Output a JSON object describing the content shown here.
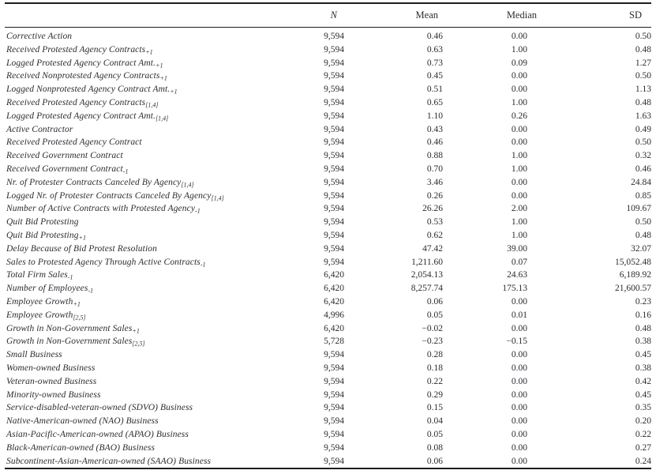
{
  "table": {
    "columns": [
      "N",
      "Mean",
      "Median",
      "SD"
    ],
    "rows": [
      {
        "label": "Corrective Action",
        "sub": "",
        "n": "9,594",
        "mean": "0.46",
        "median": "0.00",
        "sd": "0.50"
      },
      {
        "label": "Received Protested Agency Contracts",
        "sub": "+1",
        "n": "9,594",
        "mean": "0.63",
        "median": "1.00",
        "sd": "0.48"
      },
      {
        "label": "Logged Protested Agency Contract Amt.",
        "sub": "+1",
        "n": "9,594",
        "mean": "0.73",
        "median": "0.09",
        "sd": "1.27"
      },
      {
        "label": "Received Nonprotested Agency Contracts",
        "sub": "+1",
        "n": "9,594",
        "mean": "0.45",
        "median": "0.00",
        "sd": "0.50"
      },
      {
        "label": "Logged Nonprotested Agency Contract Amt.",
        "sub": "+1",
        "n": "9,594",
        "mean": "0.51",
        "median": "0.00",
        "sd": "1.13"
      },
      {
        "label": "Received Protested Agency Contracts",
        "sub": "[1,4]",
        "n": "9,594",
        "mean": "0.65",
        "median": "1.00",
        "sd": "0.48"
      },
      {
        "label": "Logged Protested Agency Contract Amt.",
        "sub": "[1,4]",
        "n": "9,594",
        "mean": "1.10",
        "median": "0.26",
        "sd": "1.63"
      },
      {
        "label": "Active Contractor",
        "sub": "",
        "n": "9,594",
        "mean": "0.43",
        "median": "0.00",
        "sd": "0.49"
      },
      {
        "label": "Received Protested Agency Contract",
        "sub": "",
        "n": "9,594",
        "mean": "0.46",
        "median": "0.00",
        "sd": "0.50"
      },
      {
        "label": "Received Government Contract",
        "sub": "",
        "n": "9,594",
        "mean": "0.88",
        "median": "1.00",
        "sd": "0.32"
      },
      {
        "label": "Received Government Contract",
        "sub": "-1",
        "n": "9,594",
        "mean": "0.70",
        "median": "1.00",
        "sd": "0.46"
      },
      {
        "label": "Nr. of Protester Contracts Canceled By Agency",
        "sub": "[1,4]",
        "n": "9,594",
        "mean": "3.46",
        "median": "0.00",
        "sd": "24.84"
      },
      {
        "label": "Logged Nr. of Protester Contracts Canceled By Agency",
        "sub": "[1,4]",
        "n": "9,594",
        "mean": "0.26",
        "median": "0.00",
        "sd": "0.85"
      },
      {
        "label": "Number of Active Contracts with Protested Agency",
        "sub": "-1",
        "n": "9,594",
        "mean": "26.26",
        "median": "2.00",
        "sd": "109.67"
      },
      {
        "label": "Quit Bid Protesting",
        "sub": "",
        "n": "9,594",
        "mean": "0.53",
        "median": "1.00",
        "sd": "0.50"
      },
      {
        "label": "Quit Bid Protesting",
        "sub": "+1",
        "n": "9,594",
        "mean": "0.62",
        "median": "1.00",
        "sd": "0.48"
      },
      {
        "label": "Delay Because of Bid Protest Resolution",
        "sub": "",
        "n": "9,594",
        "mean": "47.42",
        "median": "39.00",
        "sd": "32.07"
      },
      {
        "label": "Sales to Protested Agency Through Active Contracts",
        "sub": "-1",
        "n": "9,594",
        "mean": "1,211.60",
        "median": "0.07",
        "sd": "15,052.48"
      },
      {
        "label": "Total Firm Sales",
        "sub": "-1",
        "n": "6,420",
        "mean": "2,054.13",
        "median": "24.63",
        "sd": "6,189.92"
      },
      {
        "label": "Number of Employees",
        "sub": "-1",
        "n": "6,420",
        "mean": "8,257.74",
        "median": "175.13",
        "sd": "21,600.57"
      },
      {
        "label": "Employee Growth",
        "sub": "+1",
        "n": "6,420",
        "mean": "0.06",
        "median": "0.00",
        "sd": "0.23"
      },
      {
        "label": "Employee Growth",
        "sub": "[2,5]",
        "n": "4,996",
        "mean": "0.05",
        "median": "0.01",
        "sd": "0.16"
      },
      {
        "label": "Growth in Non-Government Sales",
        "sub": "+1",
        "n": "6,420",
        "mean": "−0.02",
        "median": "0.00",
        "sd": "0.48"
      },
      {
        "label": "Growth in Non-Government Sales",
        "sub": "[2,5]",
        "n": "5,728",
        "mean": "−0.23",
        "median": "−0.15",
        "sd": "0.38"
      },
      {
        "label": "Small Business",
        "sub": "",
        "n": "9,594",
        "mean": "0.28",
        "median": "0.00",
        "sd": "0.45"
      },
      {
        "label": "Women-owned Business",
        "sub": "",
        "n": "9,594",
        "mean": "0.18",
        "median": "0.00",
        "sd": "0.38"
      },
      {
        "label": "Veteran-owned Business",
        "sub": "",
        "n": "9,594",
        "mean": "0.22",
        "median": "0.00",
        "sd": "0.42"
      },
      {
        "label": "Minority-owned Business",
        "sub": "",
        "n": "9,594",
        "mean": "0.29",
        "median": "0.00",
        "sd": "0.45"
      },
      {
        "label": "Service-disabled-veteran-owned (SDVO) Business",
        "sub": "",
        "n": "9,594",
        "mean": "0.15",
        "median": "0.00",
        "sd": "0.35"
      },
      {
        "label": "Native-American-owned (NAO) Business",
        "sub": "",
        "n": "9,594",
        "mean": "0.04",
        "median": "0.00",
        "sd": "0.20"
      },
      {
        "label": "Asian-Pacific-American-owned (APAO) Business",
        "sub": "",
        "n": "9,594",
        "mean": "0.05",
        "median": "0.00",
        "sd": "0.22"
      },
      {
        "label": "Black-American-owned (BAO) Business",
        "sub": "",
        "n": "9,594",
        "mean": "0.08",
        "median": "0.00",
        "sd": "0.27"
      },
      {
        "label": "Subcontinent-Asian-American-owned (SAAO) Business",
        "sub": "",
        "n": "9,594",
        "mean": "0.06",
        "median": "0.00",
        "sd": "0.24"
      }
    ]
  }
}
